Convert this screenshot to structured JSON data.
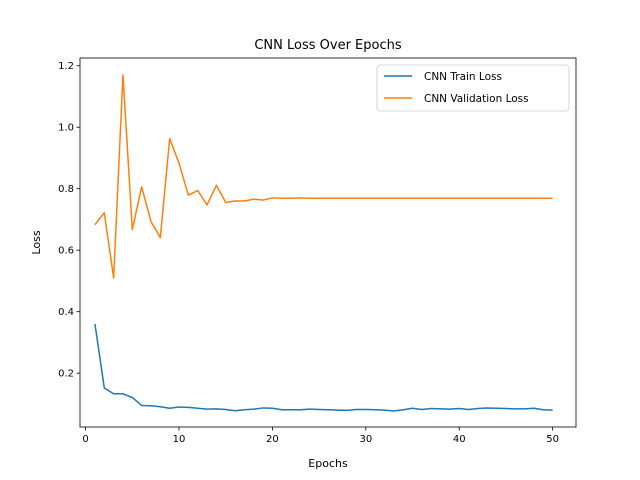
{
  "chart_data": {
    "type": "line",
    "title": "CNN Loss Over Epochs",
    "xlabel": "Epochs",
    "ylabel": "Loss",
    "xlim": [
      -0.6,
      52.5
    ],
    "ylim": [
      0.025,
      1.225
    ],
    "xticks": [
      0,
      10,
      20,
      30,
      40,
      50
    ],
    "yticks": [
      0.2,
      0.4,
      0.6,
      0.8,
      1.0,
      1.2
    ],
    "ytick_labels": [
      "0.2",
      "0.4",
      "0.6",
      "0.8",
      "1.0",
      "1.2"
    ],
    "grid": false,
    "legend_position": "top-right",
    "x": [
      1,
      2,
      3,
      4,
      5,
      6,
      7,
      8,
      9,
      10,
      11,
      12,
      13,
      14,
      15,
      16,
      17,
      18,
      19,
      20,
      21,
      22,
      23,
      24,
      25,
      26,
      27,
      28,
      29,
      30,
      31,
      32,
      33,
      34,
      35,
      36,
      37,
      38,
      39,
      40,
      41,
      42,
      43,
      44,
      45,
      46,
      47,
      48,
      49,
      50
    ],
    "series": [
      {
        "name": "CNN Train Loss",
        "color": "#1f77b4",
        "values": [
          0.36,
          0.152,
          0.133,
          0.133,
          0.121,
          0.095,
          0.094,
          0.091,
          0.086,
          0.09,
          0.089,
          0.086,
          0.083,
          0.084,
          0.082,
          0.078,
          0.081,
          0.083,
          0.087,
          0.086,
          0.081,
          0.081,
          0.081,
          0.083,
          0.082,
          0.081,
          0.08,
          0.079,
          0.082,
          0.082,
          0.081,
          0.08,
          0.077,
          0.081,
          0.086,
          0.082,
          0.085,
          0.084,
          0.083,
          0.085,
          0.082,
          0.085,
          0.087,
          0.086,
          0.085,
          0.084,
          0.084,
          0.086,
          0.081,
          0.08
        ]
      },
      {
        "name": "CNN Validation Loss",
        "color": "#ff7f0e",
        "values": [
          0.683,
          0.722,
          0.51,
          1.17,
          0.667,
          0.806,
          0.693,
          0.641,
          0.963,
          0.883,
          0.779,
          0.794,
          0.747,
          0.811,
          0.755,
          0.76,
          0.76,
          0.766,
          0.763,
          0.77,
          0.769,
          0.769,
          0.77,
          0.769,
          0.769,
          0.769,
          0.769,
          0.769,
          0.769,
          0.769,
          0.769,
          0.769,
          0.769,
          0.769,
          0.769,
          0.769,
          0.769,
          0.769,
          0.769,
          0.769,
          0.769,
          0.769,
          0.769,
          0.769,
          0.769,
          0.769,
          0.769,
          0.769,
          0.769,
          0.769
        ]
      }
    ]
  }
}
